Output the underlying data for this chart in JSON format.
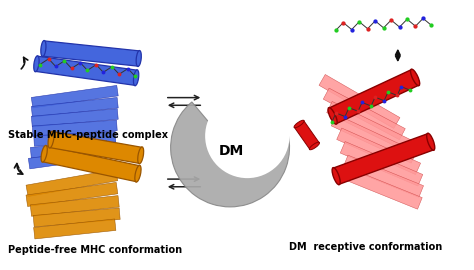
{
  "bg_color": "#ffffff",
  "labels": {
    "stable": "Stable MHC-peptide complex",
    "peptide_free": "Peptide-free MHC conformation",
    "dm_receptive": "DM  receptive conformation",
    "dm": "DM"
  },
  "label_fontsize": 7.0,
  "dm_fontsize": 10,
  "blue_color": "#4466dd",
  "blue_dark": "#2233aa",
  "blue_light": "#8899ee",
  "orange_color": "#dd8800",
  "orange_dark": "#995500",
  "red_color": "#dd1111",
  "red_dark": "#880000",
  "pink_color": "#ff9999",
  "pink_dark": "#cc4444",
  "green_color": "#22cc22",
  "red_dot": "#dd2222",
  "blue_dot": "#2222dd",
  "gray_dm": "#aaaaaa",
  "gray_dm_dark": "#888888",
  "arrow_color": "#111111",
  "eq_arrow_color": "#222222"
}
